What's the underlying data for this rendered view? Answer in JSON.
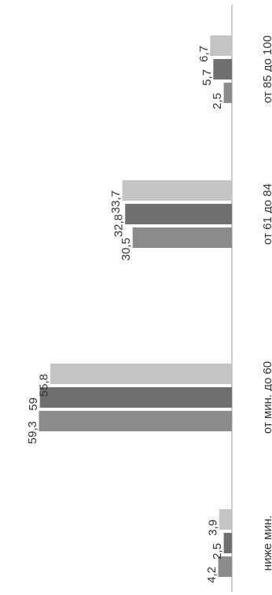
{
  "chart_data": {
    "type": "bar",
    "orientation": "rotated 90° counter-clockwise (vertical bars drawn horizontally)",
    "categories": [
      "ниже мин.",
      "от мин. до 60",
      "от 61 до 84",
      "от 85 до 100"
    ],
    "series": [
      {
        "values": [
          4.2,
          59.3,
          30.5,
          2.5
        ],
        "color": "#8c8c8c"
      },
      {
        "values": [
          2.5,
          59,
          32.8,
          5.7
        ],
        "color": "#6f6f6f"
      },
      {
        "values": [
          3.9,
          55.8,
          33.7,
          6.7
        ],
        "color": "#c4c4c4"
      }
    ],
    "data_labels": [
      [
        "4,2",
        "59,3",
        "30,5",
        "2,5"
      ],
      [
        "2,5",
        "59",
        "32,8",
        "5,7"
      ],
      [
        "3,9",
        "55,8",
        "33,7",
        "6,7"
      ]
    ],
    "ylim": [
      0,
      70
    ],
    "grid": false,
    "legend": "none"
  }
}
